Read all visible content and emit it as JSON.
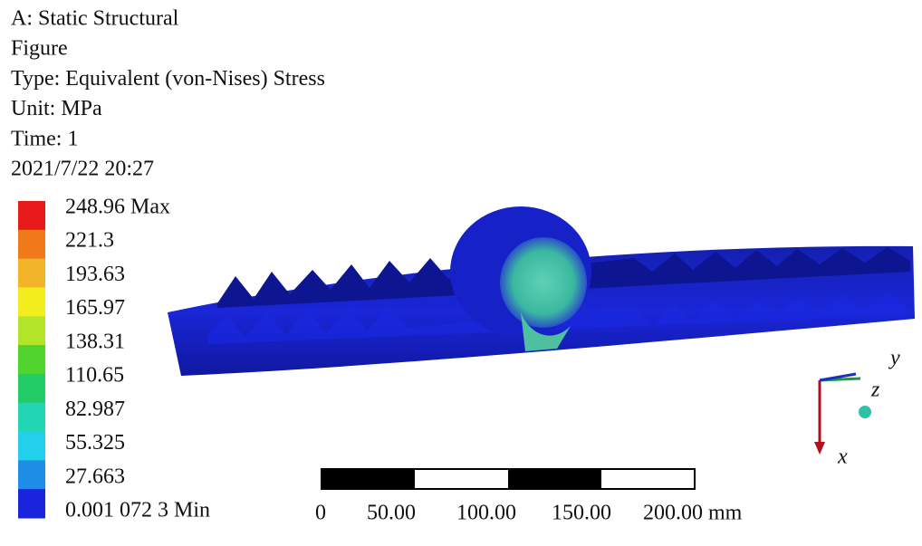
{
  "header": {
    "lines": [
      "A: Static Structural",
      "Figure",
      "Type: Equivalent (von-Nises) Stress",
      "Unit: MPa",
      "Time: 1",
      "2021/7/22  20:27"
    ]
  },
  "legend": {
    "labels": [
      "248.96 Max",
      "221.3",
      "193.63",
      "165.97",
      "138.31",
      "110.65",
      "82.987",
      "55.325",
      "27.663",
      "0.001 072 3 Min"
    ],
    "colors": [
      "#e81a1a",
      "#f07a1a",
      "#f2b428",
      "#f2ee1e",
      "#b4e42a",
      "#52d42e",
      "#22cc66",
      "#22d6b4",
      "#22d0ec",
      "#1e8ee6",
      "#1a24dc"
    ]
  },
  "scale_bar": {
    "labels": [
      "0",
      "50.00",
      "100.00",
      "150.00",
      "200.00 mm"
    ]
  },
  "triad": {
    "labels": [
      "y",
      "z",
      "x"
    ]
  }
}
